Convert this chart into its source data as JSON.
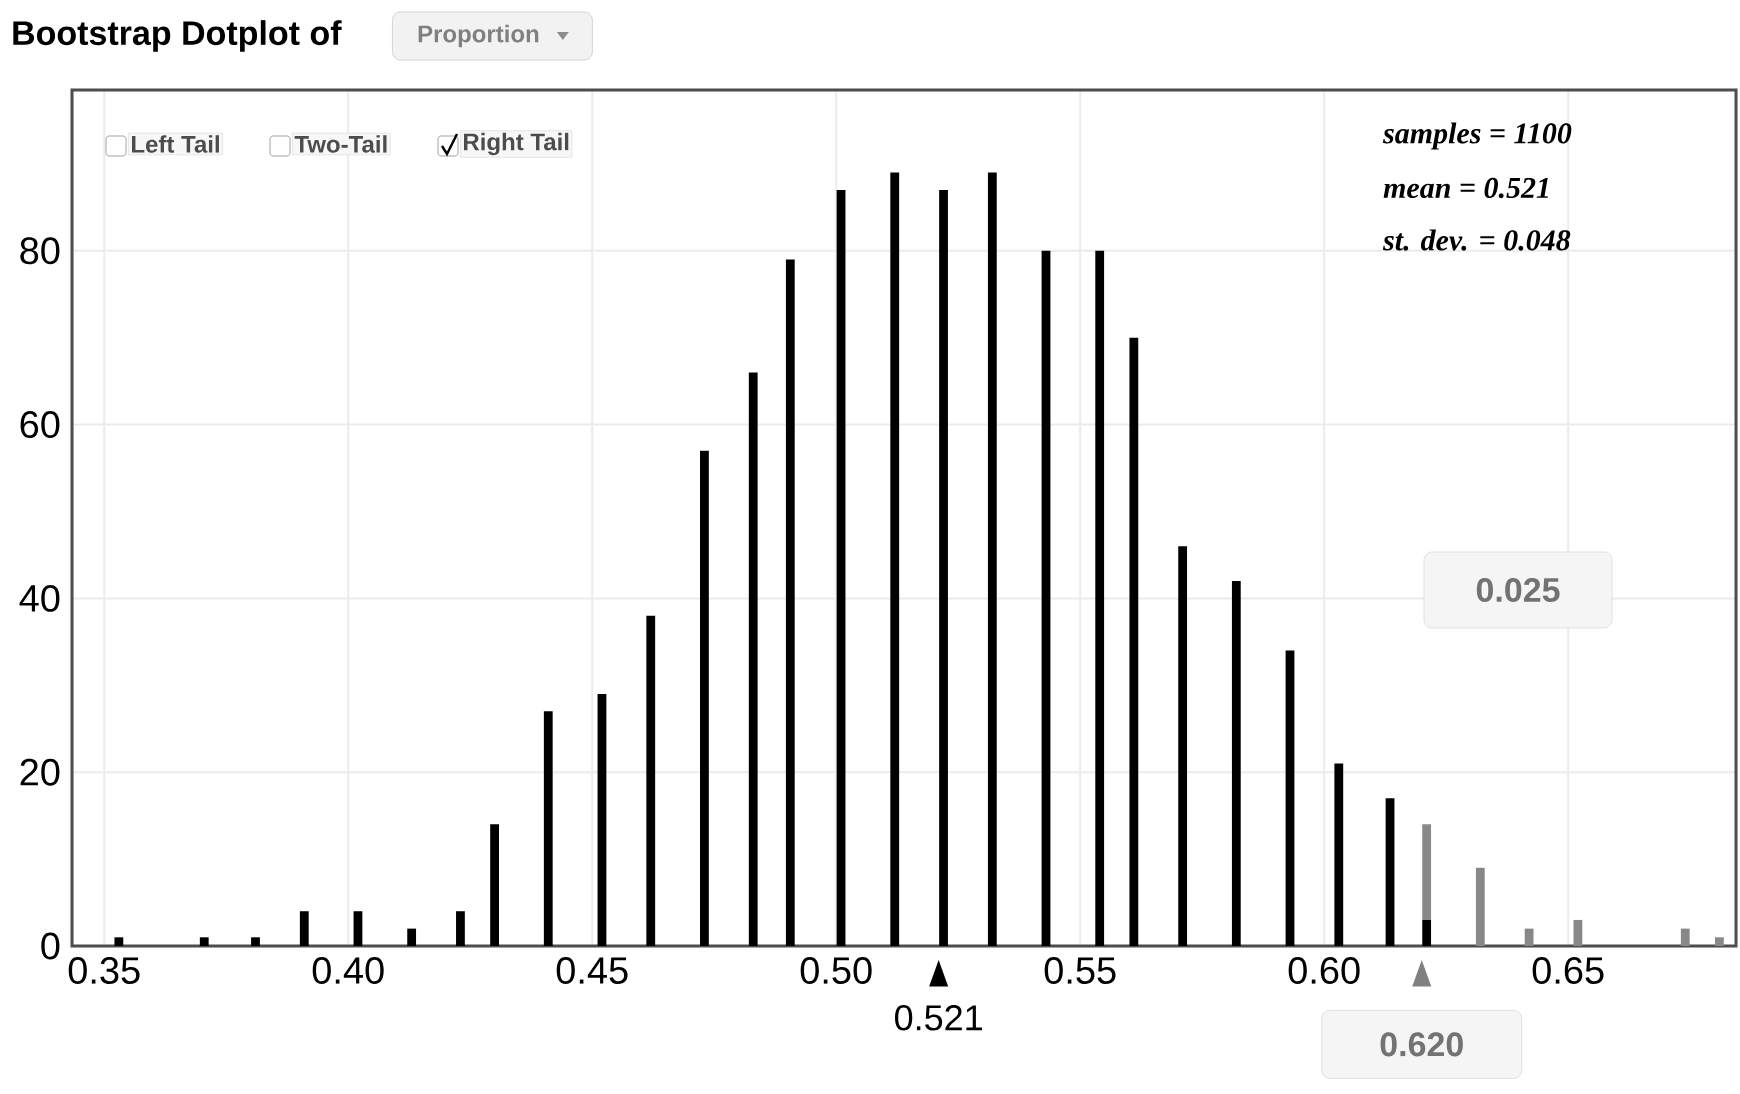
{
  "chart_data": {
    "type": "bar",
    "title": "Bootstrap Dotplot of",
    "stacked": true,
    "x": [
      0.353,
      0.3705,
      0.381,
      0.391,
      0.402,
      0.413,
      0.423,
      0.43,
      0.441,
      0.452,
      0.462,
      0.473,
      0.483,
      0.4906,
      0.501,
      0.512,
      0.522,
      0.532,
      0.543,
      0.554,
      0.561,
      0.571,
      0.582,
      0.593,
      0.603,
      0.6135,
      0.621,
      0.632,
      0.642,
      0.652,
      0.674,
      0.681
    ],
    "series": [
      {
        "color": "#000000",
        "values": [
          1,
          1,
          1,
          4,
          4,
          2,
          4,
          14,
          27,
          29,
          38,
          57,
          66,
          79,
          87,
          89,
          87,
          89,
          80,
          80,
          70,
          46,
          42,
          34,
          21,
          17,
          3,
          null,
          null,
          null,
          null,
          null
        ]
      },
      {
        "color": "#888888",
        "values": [
          null,
          null,
          null,
          null,
          null,
          null,
          null,
          null,
          null,
          null,
          null,
          null,
          null,
          null,
          null,
          null,
          null,
          null,
          null,
          null,
          null,
          null,
          null,
          null,
          null,
          null,
          11,
          9,
          2,
          3,
          2,
          1
        ]
      }
    ],
    "xlim": [
      0.3434,
      0.6844
    ],
    "ylim": [
      0,
      98.5
    ],
    "xticks": [
      0.35,
      {
        "value": 0.4,
        "label": "0.40"
      },
      0.45,
      {
        "value": 0.5,
        "label": "0.50"
      },
      0.55,
      {
        "value": 0.6,
        "label": "0.60"
      },
      0.65
    ],
    "yticks": [
      0,
      20,
      40,
      60,
      80
    ],
    "grid": true,
    "annotations": [
      "samples = 1100",
      "mean = 0.521",
      "st. dev. = 0.048",
      "0.025",
      "Left Tail",
      "Two-Tail",
      "Right Tail",
      "Proportion",
      {
        "text": "0.521",
        "x": 0.521,
        "y": 0
      },
      {
        "text": "0.620",
        "x": 0.62,
        "y": 0
      }
    ]
  }
}
